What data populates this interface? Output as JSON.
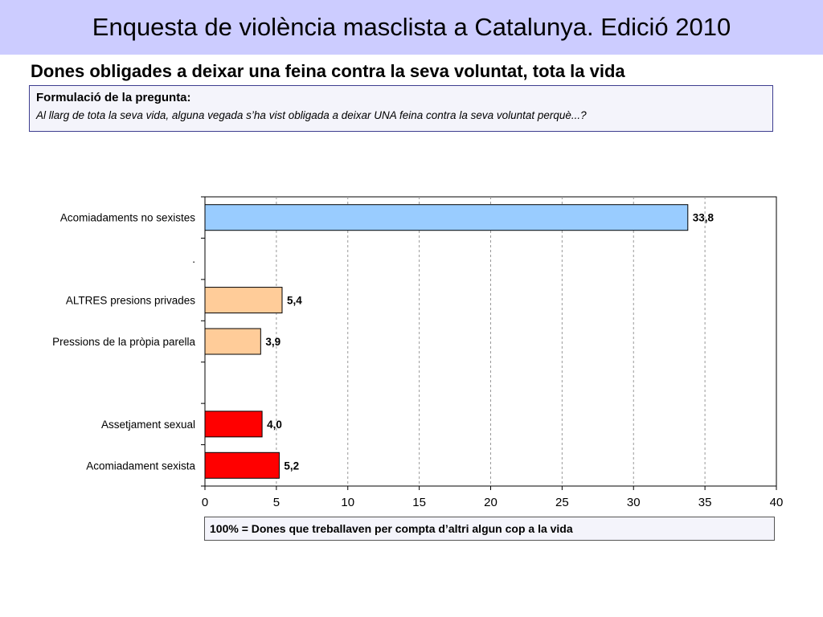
{
  "header": {
    "title": "Enquesta de violència masclista a Catalunya. Edició 2010"
  },
  "subtitle": "Dones obligades a deixar una feina contra la seva voluntat, tota la vida",
  "question": {
    "label": "Formulació de la pregunta:",
    "text": "Al llarg de tota la seva vida, alguna vegada s’ha vist obligada a deixar UNA feina contra la seva voluntat perquè...?"
  },
  "base_note": "100% = Dones que treballaven per compta d’altri  algun cop a la vida",
  "colors": {
    "title_bg": "#ccccff",
    "blue": "#99ccff",
    "peach": "#ffcc99",
    "red": "#ff0000"
  },
  "chart_data": {
    "type": "bar",
    "orientation": "horizontal",
    "categories": [
      "Acomiadaments no sexistes",
      ".",
      "ALTRES presions privades",
      "Pressions de la pròpia parella",
      "",
      "Assetjament sexual",
      "Acomiadament sexista"
    ],
    "values": [
      33.8,
      null,
      5.4,
      3.9,
      null,
      4.0,
      5.2
    ],
    "value_labels": [
      "33,8",
      "",
      "5,4",
      "3,9",
      "",
      "4,0",
      "5,2"
    ],
    "bar_colors": [
      "#99ccff",
      null,
      "#ffcc99",
      "#ffcc99",
      null,
      "#ff0000",
      "#ff0000"
    ],
    "xlim": [
      0,
      40
    ],
    "xticks": [
      0,
      5,
      10,
      15,
      20,
      25,
      30,
      35,
      40
    ],
    "grid": "vertical-dashed",
    "title": "",
    "xlabel": "",
    "ylabel": ""
  }
}
